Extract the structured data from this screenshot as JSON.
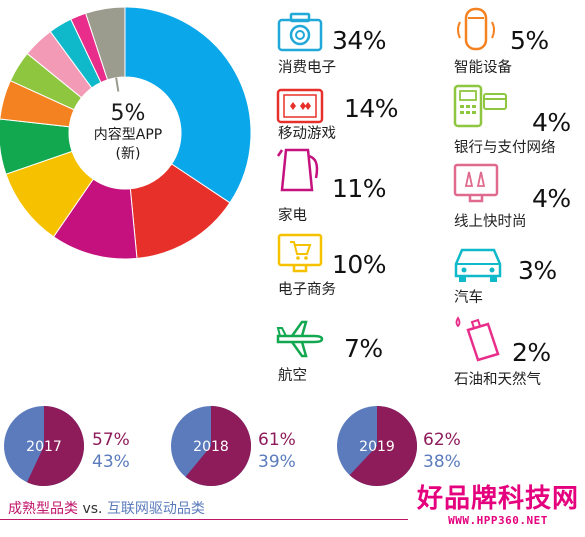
{
  "chart_data": [
    {
      "type": "pie",
      "categories": [
        "消费电子",
        "移动游戏",
        "家电",
        "电子商务",
        "航空",
        "智能设备",
        "银行与支付网络",
        "线上快时尚",
        "汽车",
        "石油和天然气",
        "内容型APP (新)"
      ],
      "values": [
        34,
        14,
        11,
        10,
        7,
        5,
        4,
        4,
        3,
        2,
        5
      ],
      "colors": [
        "#0aa7ea",
        "#e8302a",
        "#c4117e",
        "#f6c200",
        "#12a84f",
        "#f58220",
        "#8fc640",
        "#f29ab6",
        "#0fb9c9",
        "#e82e8a",
        "#9b9b8e"
      ],
      "center_label": {
        "value": "5%",
        "line1": "内容型APP",
        "line2": "(新)"
      }
    },
    {
      "type": "pie",
      "categories": [
        "2017",
        "2018",
        "2019"
      ],
      "series": [
        {
          "name": "成熟型品类",
          "values": [
            57,
            61,
            62
          ]
        },
        {
          "name": "互联网驱动品类",
          "values": [
            43,
            39,
            38
          ]
        }
      ],
      "colors": {
        "mature": "#8e1b5a",
        "internet": "#5b7bbd"
      }
    }
  ],
  "left_labels": [
    {
      "pct": "34%",
      "label": "消费电子",
      "icon": "camera-icon",
      "color": "#20a8d8"
    },
    {
      "pct": "14%",
      "label": "移动游戏",
      "icon": "game-phone-icon",
      "color": "#e8302a"
    },
    {
      "pct": "11%",
      "label": "家电",
      "icon": "kettle-icon",
      "color": "#c4117e"
    },
    {
      "pct": "10%",
      "label": "电子商务",
      "icon": "cart-screen-icon",
      "color": "#f6c200"
    },
    {
      "pct": "7%",
      "label": "航空",
      "icon": "airplane-icon",
      "color": "#12a84f"
    }
  ],
  "right_labels": [
    {
      "pct": "5%",
      "label": "智能设备",
      "icon": "smart-speaker-icon",
      "color": "#f58220"
    },
    {
      "pct": "4%",
      "label": "银行与支付网络",
      "icon": "pos-card-icon",
      "color": "#8fc640"
    },
    {
      "pct": "4%",
      "label": "线上快时尚",
      "icon": "fashion-screen-icon",
      "color": "#e06a8e"
    },
    {
      "pct": "3%",
      "label": "汽车",
      "icon": "car-icon",
      "color": "#0fb9c9"
    },
    {
      "pct": "2%",
      "label": "石油和天然气",
      "icon": "oil-can-icon",
      "color": "#e82e8a"
    }
  ],
  "years": [
    {
      "year": "2017",
      "mature": "57%",
      "internet": "43%"
    },
    {
      "year": "2018",
      "mature": "61%",
      "internet": "39%"
    },
    {
      "year": "2019",
      "mature": "62%",
      "internet": "38%"
    }
  ],
  "footer": {
    "mature": "成熟型品类",
    "vs": " vs. ",
    "internet": "互联网驱动品类"
  },
  "watermark": {
    "title": "好品牌科技网",
    "url": "WWW.HPP360.NET"
  }
}
